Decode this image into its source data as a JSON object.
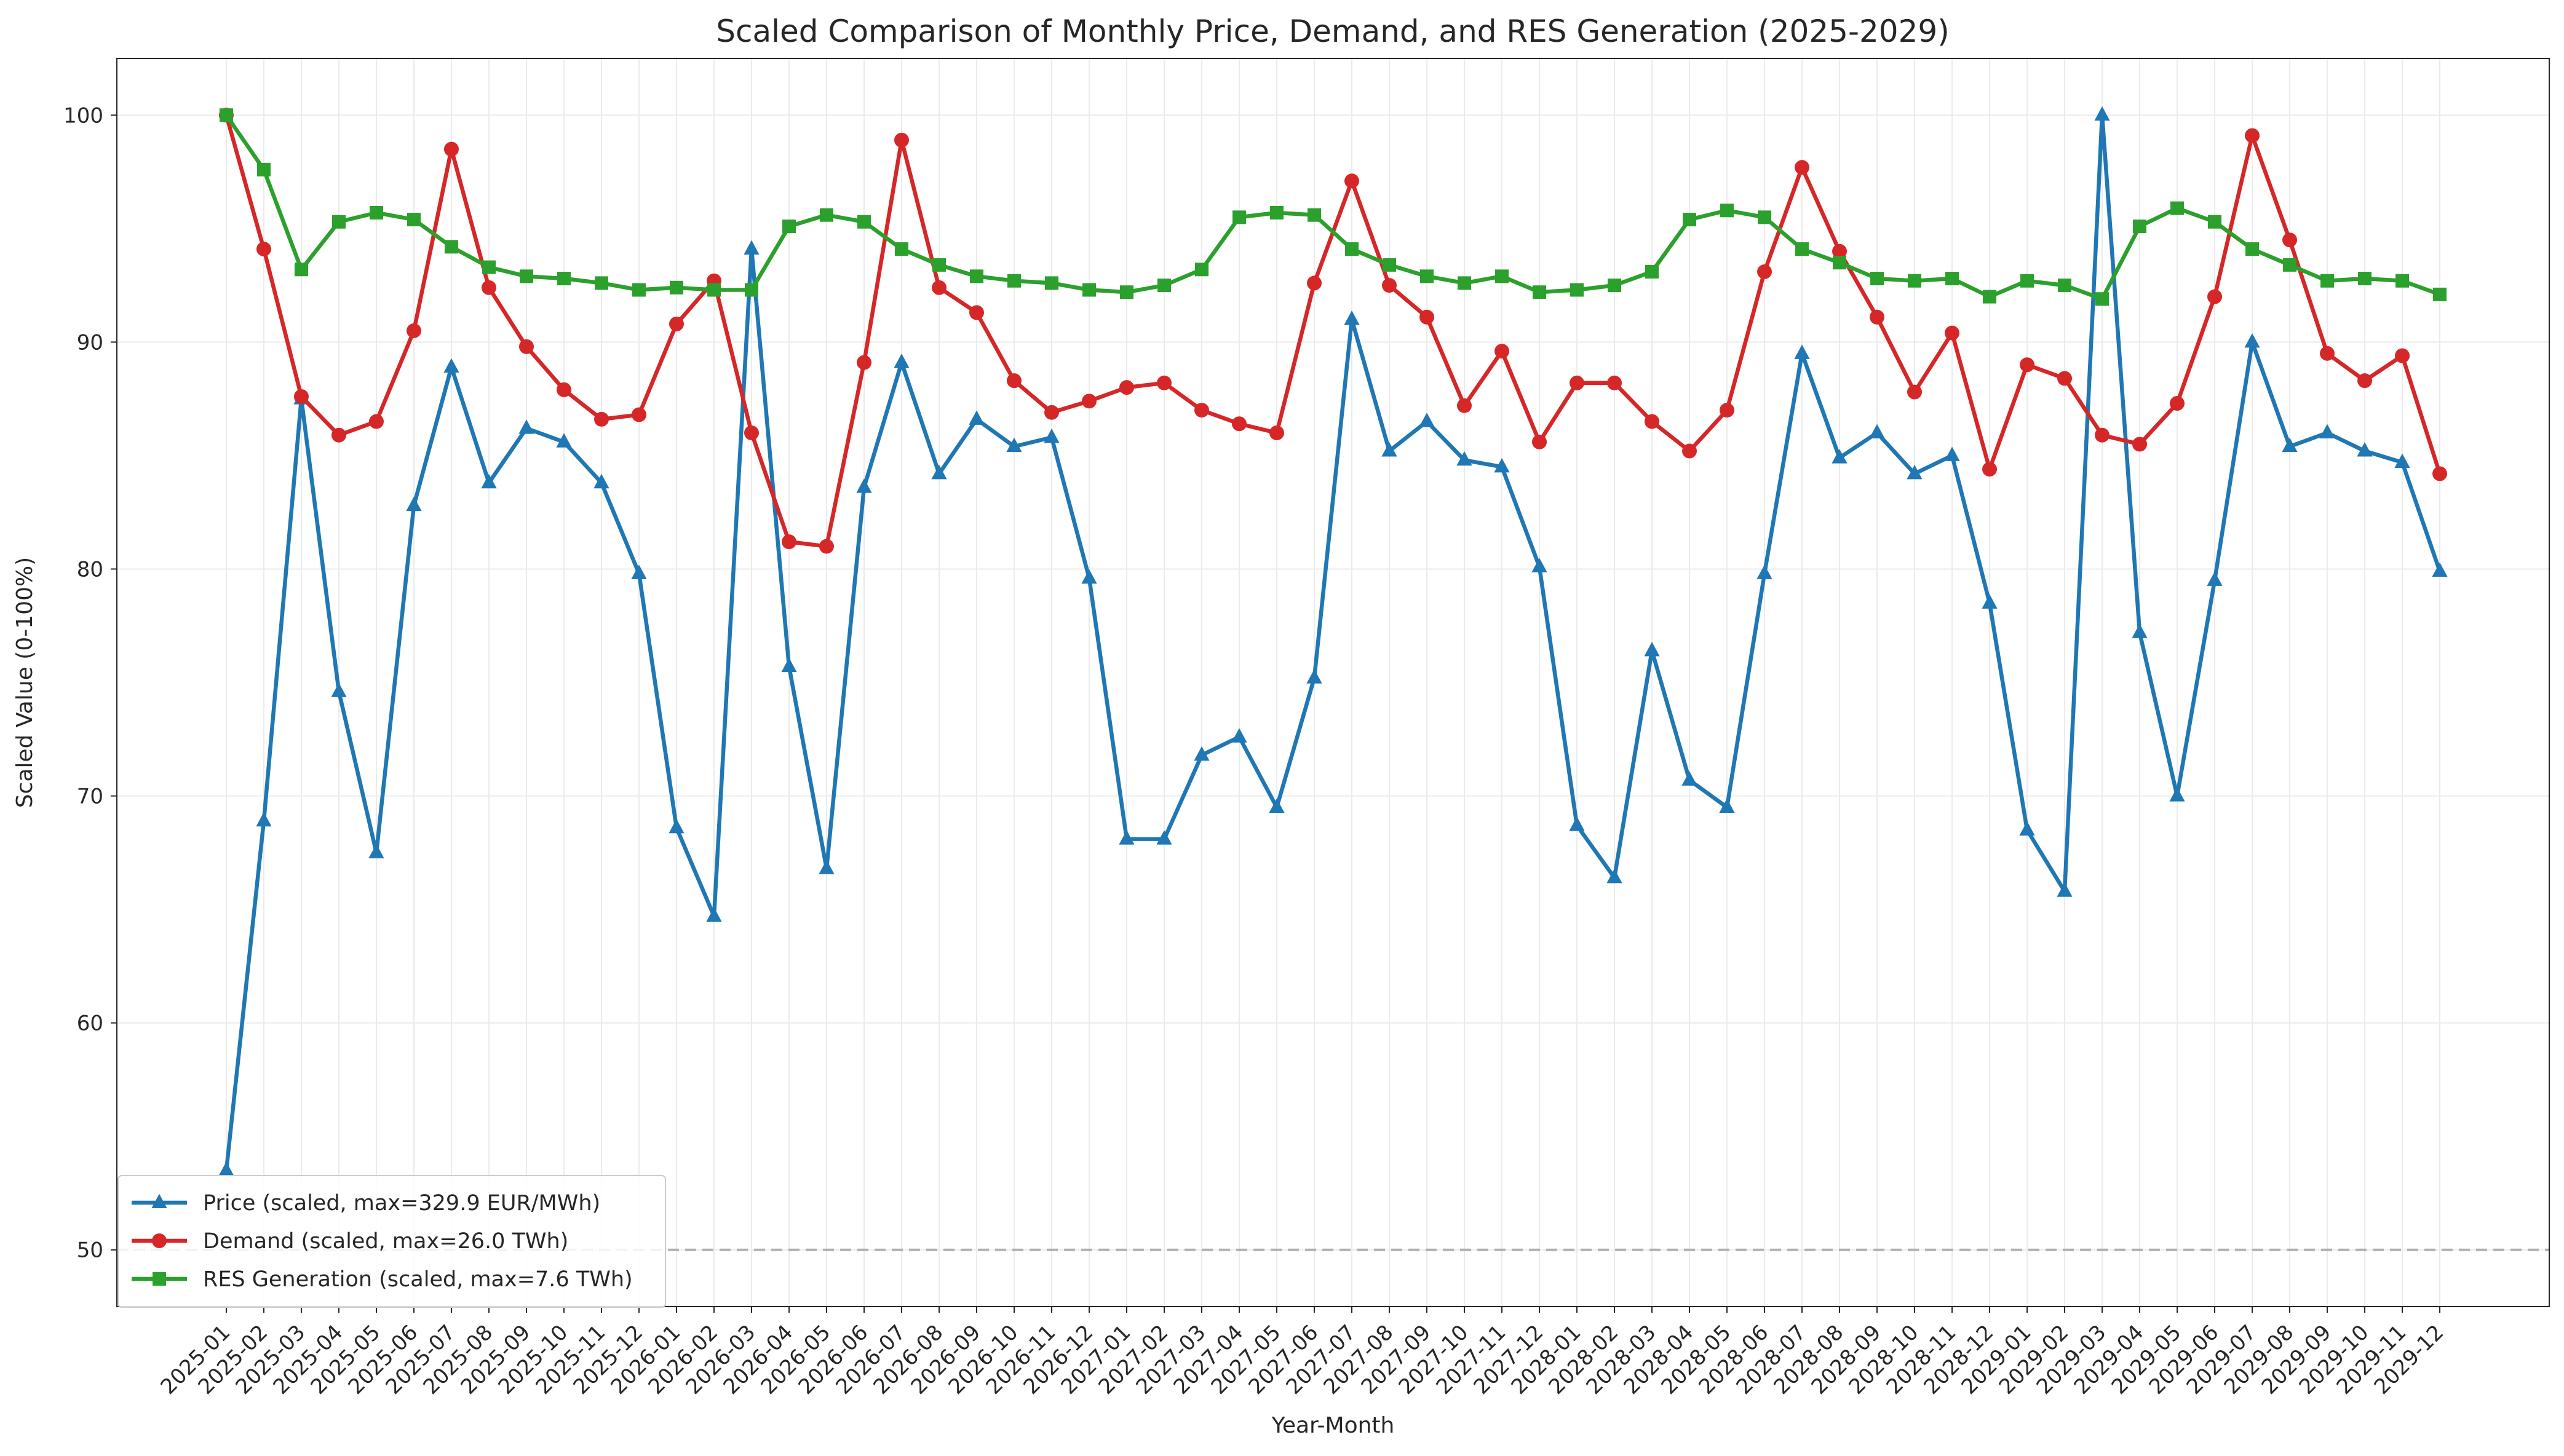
{
  "chart_data": {
    "type": "line",
    "title": "Scaled Comparison of Monthly Price, Demand, and RES Generation (2025-2029)",
    "xlabel": "Year-Month",
    "ylabel": "Scaled Value (0-100%)",
    "ylim": [
      47.5,
      102.5
    ],
    "yticks": [
      50,
      60,
      70,
      80,
      90,
      100
    ],
    "grid": true,
    "legend_position": "lower-left",
    "reference_line": {
      "y": 50,
      "style": "dashed",
      "color": "#b0b0b0"
    },
    "x": [
      "2025-01",
      "2025-02",
      "2025-03",
      "2025-04",
      "2025-05",
      "2025-06",
      "2025-07",
      "2025-08",
      "2025-09",
      "2025-10",
      "2025-11",
      "2025-12",
      "2026-01",
      "2026-02",
      "2026-03",
      "2026-04",
      "2026-05",
      "2026-06",
      "2026-07",
      "2026-08",
      "2026-09",
      "2026-10",
      "2026-11",
      "2026-12",
      "2027-01",
      "2027-02",
      "2027-03",
      "2027-04",
      "2027-05",
      "2027-06",
      "2027-07",
      "2027-08",
      "2027-09",
      "2027-10",
      "2027-11",
      "2027-12",
      "2028-01",
      "2028-02",
      "2028-03",
      "2028-04",
      "2028-05",
      "2028-06",
      "2028-07",
      "2028-08",
      "2028-09",
      "2028-10",
      "2028-11",
      "2028-12",
      "2029-01",
      "2029-02",
      "2029-03",
      "2029-04",
      "2029-05",
      "2029-06",
      "2029-07",
      "2029-08",
      "2029-09",
      "2029-10",
      "2029-11",
      "2029-12"
    ],
    "series": [
      {
        "name": "Price (scaled, max=329.9 EUR/MWh)",
        "color": "#1f77b4",
        "marker": "triangle",
        "values": [
          53.5,
          68.9,
          87.5,
          74.6,
          67.5,
          82.8,
          88.9,
          83.8,
          86.2,
          85.6,
          83.8,
          79.8,
          68.6,
          64.7,
          94.1,
          75.7,
          66.8,
          83.6,
          89.1,
          84.2,
          86.6,
          85.4,
          85.8,
          79.6,
          68.1,
          68.1,
          71.8,
          72.6,
          69.5,
          75.2,
          91.0,
          85.2,
          86.5,
          84.8,
          84.5,
          80.1,
          68.7,
          66.4,
          76.4,
          70.7,
          69.5,
          79.8,
          89.5,
          84.9,
          86.0,
          84.2,
          85.0,
          78.5,
          68.5,
          65.8,
          100.0,
          77.2,
          70.0,
          79.5,
          90.0,
          85.4,
          86.0,
          85.2,
          84.7,
          79.9
        ]
      },
      {
        "name": "Demand (scaled, max=26.0 TWh)",
        "color": "#d62728",
        "marker": "circle",
        "values": [
          100.0,
          94.1,
          87.6,
          85.9,
          86.5,
          90.5,
          98.5,
          92.4,
          89.8,
          87.9,
          86.6,
          86.8,
          90.8,
          92.7,
          86.0,
          81.2,
          81.0,
          89.1,
          98.9,
          92.4,
          91.3,
          88.3,
          86.9,
          87.4,
          88.0,
          88.2,
          87.0,
          86.4,
          86.0,
          92.6,
          97.1,
          92.5,
          91.1,
          87.2,
          89.6,
          85.6,
          88.2,
          88.2,
          86.5,
          85.2,
          87.0,
          93.1,
          97.7,
          94.0,
          91.1,
          87.8,
          90.4,
          84.4,
          89.0,
          88.4,
          85.9,
          85.5,
          87.3,
          92.0,
          99.1,
          94.5,
          89.5,
          88.3,
          89.4,
          84.2
        ]
      },
      {
        "name": "RES Generation (scaled, max=7.6 TWh)",
        "color": "#2ca02c",
        "marker": "square",
        "values": [
          100.0,
          97.6,
          93.2,
          95.3,
          95.7,
          95.4,
          94.2,
          93.3,
          92.9,
          92.8,
          92.6,
          92.3,
          92.4,
          92.3,
          92.3,
          95.1,
          95.6,
          95.3,
          94.1,
          93.4,
          92.9,
          92.7,
          92.6,
          92.3,
          92.2,
          92.5,
          93.2,
          95.5,
          95.7,
          95.6,
          94.1,
          93.4,
          92.9,
          92.6,
          92.9,
          92.2,
          92.3,
          92.5,
          93.1,
          95.4,
          95.8,
          95.5,
          94.1,
          93.5,
          92.8,
          92.7,
          92.8,
          92.0,
          92.7,
          92.5,
          91.9,
          95.1,
          95.9,
          95.3,
          94.1,
          93.4,
          92.7,
          92.8,
          92.7,
          92.1
        ]
      }
    ]
  }
}
